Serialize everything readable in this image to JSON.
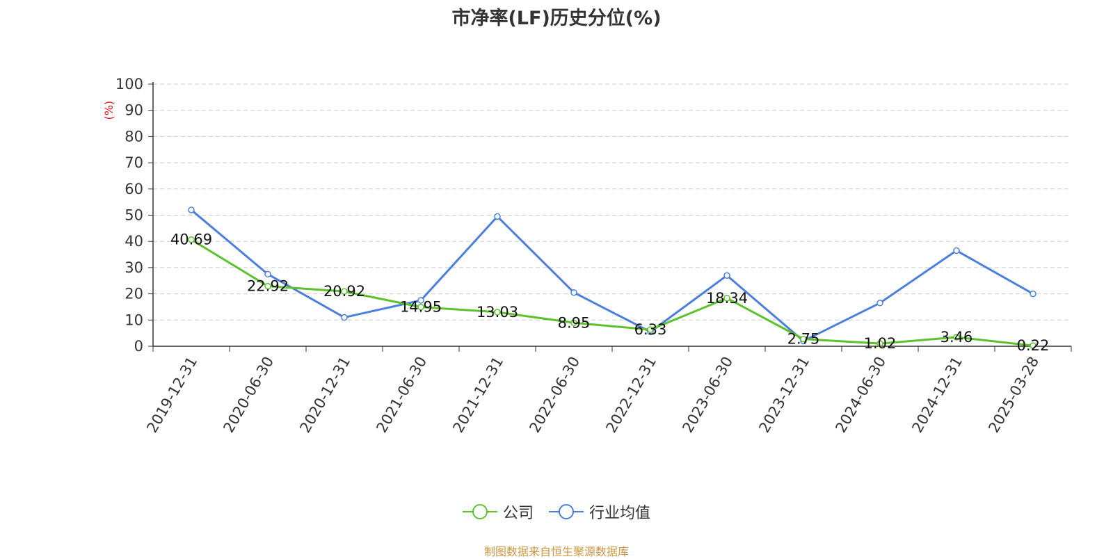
{
  "title": "市净率(LF)历史分位(%)",
  "unit_label": "(%)",
  "source_note": "制图数据来自恒生聚源数据库",
  "colors": {
    "company": "#5cc12a",
    "industry": "#4a7fdc",
    "unit": "#e0121f",
    "grid": "#cccccc",
    "axis": "#333333"
  },
  "chart_data": {
    "type": "line",
    "title": "市净率(LF)历史分位(%)",
    "ylabel": "(%)",
    "xlabel": "",
    "ylim": [
      0,
      100
    ],
    "y_ticks": [
      0,
      10,
      20,
      30,
      40,
      50,
      60,
      70,
      80,
      90,
      100
    ],
    "categories": [
      "2019-12-31",
      "2020-06-30",
      "2020-12-31",
      "2021-06-30",
      "2021-12-31",
      "2022-06-30",
      "2022-12-31",
      "2023-06-30",
      "2023-12-31",
      "2024-06-30",
      "2024-12-31",
      "2025-03-28"
    ],
    "grid": true,
    "legend_position": "bottom",
    "series": [
      {
        "name": "公司",
        "values": [
          40.69,
          22.92,
          20.92,
          14.95,
          13.03,
          8.95,
          6.33,
          18.34,
          2.75,
          1.02,
          3.46,
          0.22
        ],
        "data_labels": [
          "40.69",
          "22.92",
          "20.92",
          "14.95",
          "13.03",
          "8.95",
          "6.33",
          "18.34",
          "2.75",
          "1.02",
          "3.46",
          "0.22"
        ]
      },
      {
        "name": "行业均值",
        "values": [
          52,
          27.5,
          11,
          17.5,
          49.5,
          20.5,
          5.5,
          27,
          2,
          16.5,
          36.5,
          20
        ]
      }
    ]
  }
}
